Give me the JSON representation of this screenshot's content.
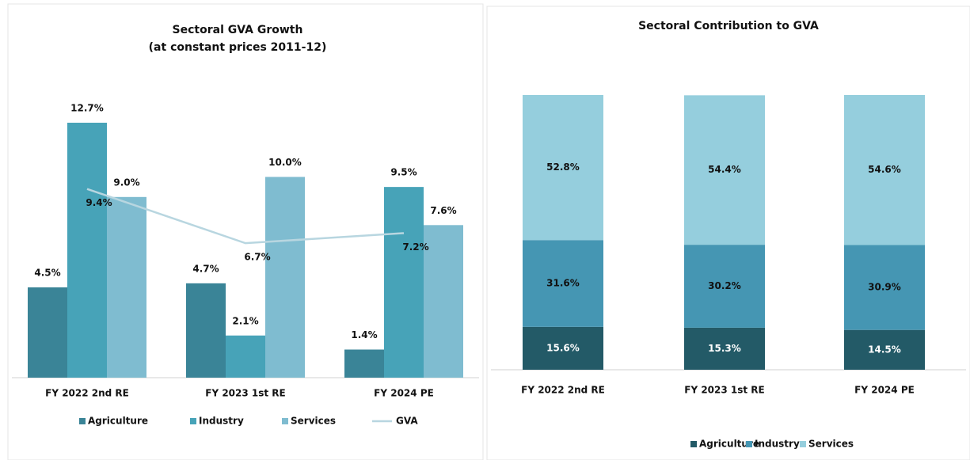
{
  "chart_data": [
    {
      "type": "bar",
      "title": "Sectoral GVA Growth",
      "subtitle": "(at constant prices 2011-12)",
      "categories": [
        "FY 2022 2nd RE",
        "FY 2023 1st RE",
        "FY 2024 PE"
      ],
      "series": [
        {
          "name": "Agriculture",
          "color": "#3a8497",
          "values": [
            4.5,
            4.7,
            1.4
          ],
          "value_labels": [
            "4.5%",
            "4.7%",
            "1.4%"
          ]
        },
        {
          "name": "Industry",
          "color": "#47a3b8",
          "values": [
            12.7,
            2.1,
            9.5
          ],
          "value_labels": [
            "12.7%",
            "2.1%",
            "9.5%"
          ]
        },
        {
          "name": "Services",
          "color": "#7fbcd0",
          "values": [
            9.0,
            10.0,
            7.6
          ],
          "value_labels": [
            "9.0%",
            "10.0%",
            "7.6%"
          ]
        },
        {
          "name": "GVA",
          "color": "#b8d6e0",
          "type": "line",
          "values": [
            9.4,
            6.7,
            7.2
          ],
          "value_labels": [
            "9.4%",
            "6.7%",
            "7.2%"
          ]
        }
      ]
    },
    {
      "type": "stacked_bar",
      "title": "Sectoral Contribution to GVA",
      "categories": [
        "FY 2022 2nd RE",
        "FY 2023 1st RE",
        "FY 2024 PE"
      ],
      "series": [
        {
          "name": "Agriculture",
          "color": "#235a67",
          "values": [
            15.6,
            15.3,
            14.5
          ],
          "value_labels": [
            "15.6%",
            "15.3%",
            "14.5%"
          ]
        },
        {
          "name": "Industry",
          "color": "#4596b3",
          "values": [
            31.6,
            30.2,
            30.9
          ],
          "value_labels": [
            "31.6%",
            "30.2%",
            "30.9%"
          ]
        },
        {
          "name": "Services",
          "color": "#95cedd",
          "values": [
            52.8,
            54.4,
            54.6
          ],
          "value_labels": [
            "52.8%",
            "54.4%",
            "54.6%"
          ]
        }
      ]
    }
  ]
}
